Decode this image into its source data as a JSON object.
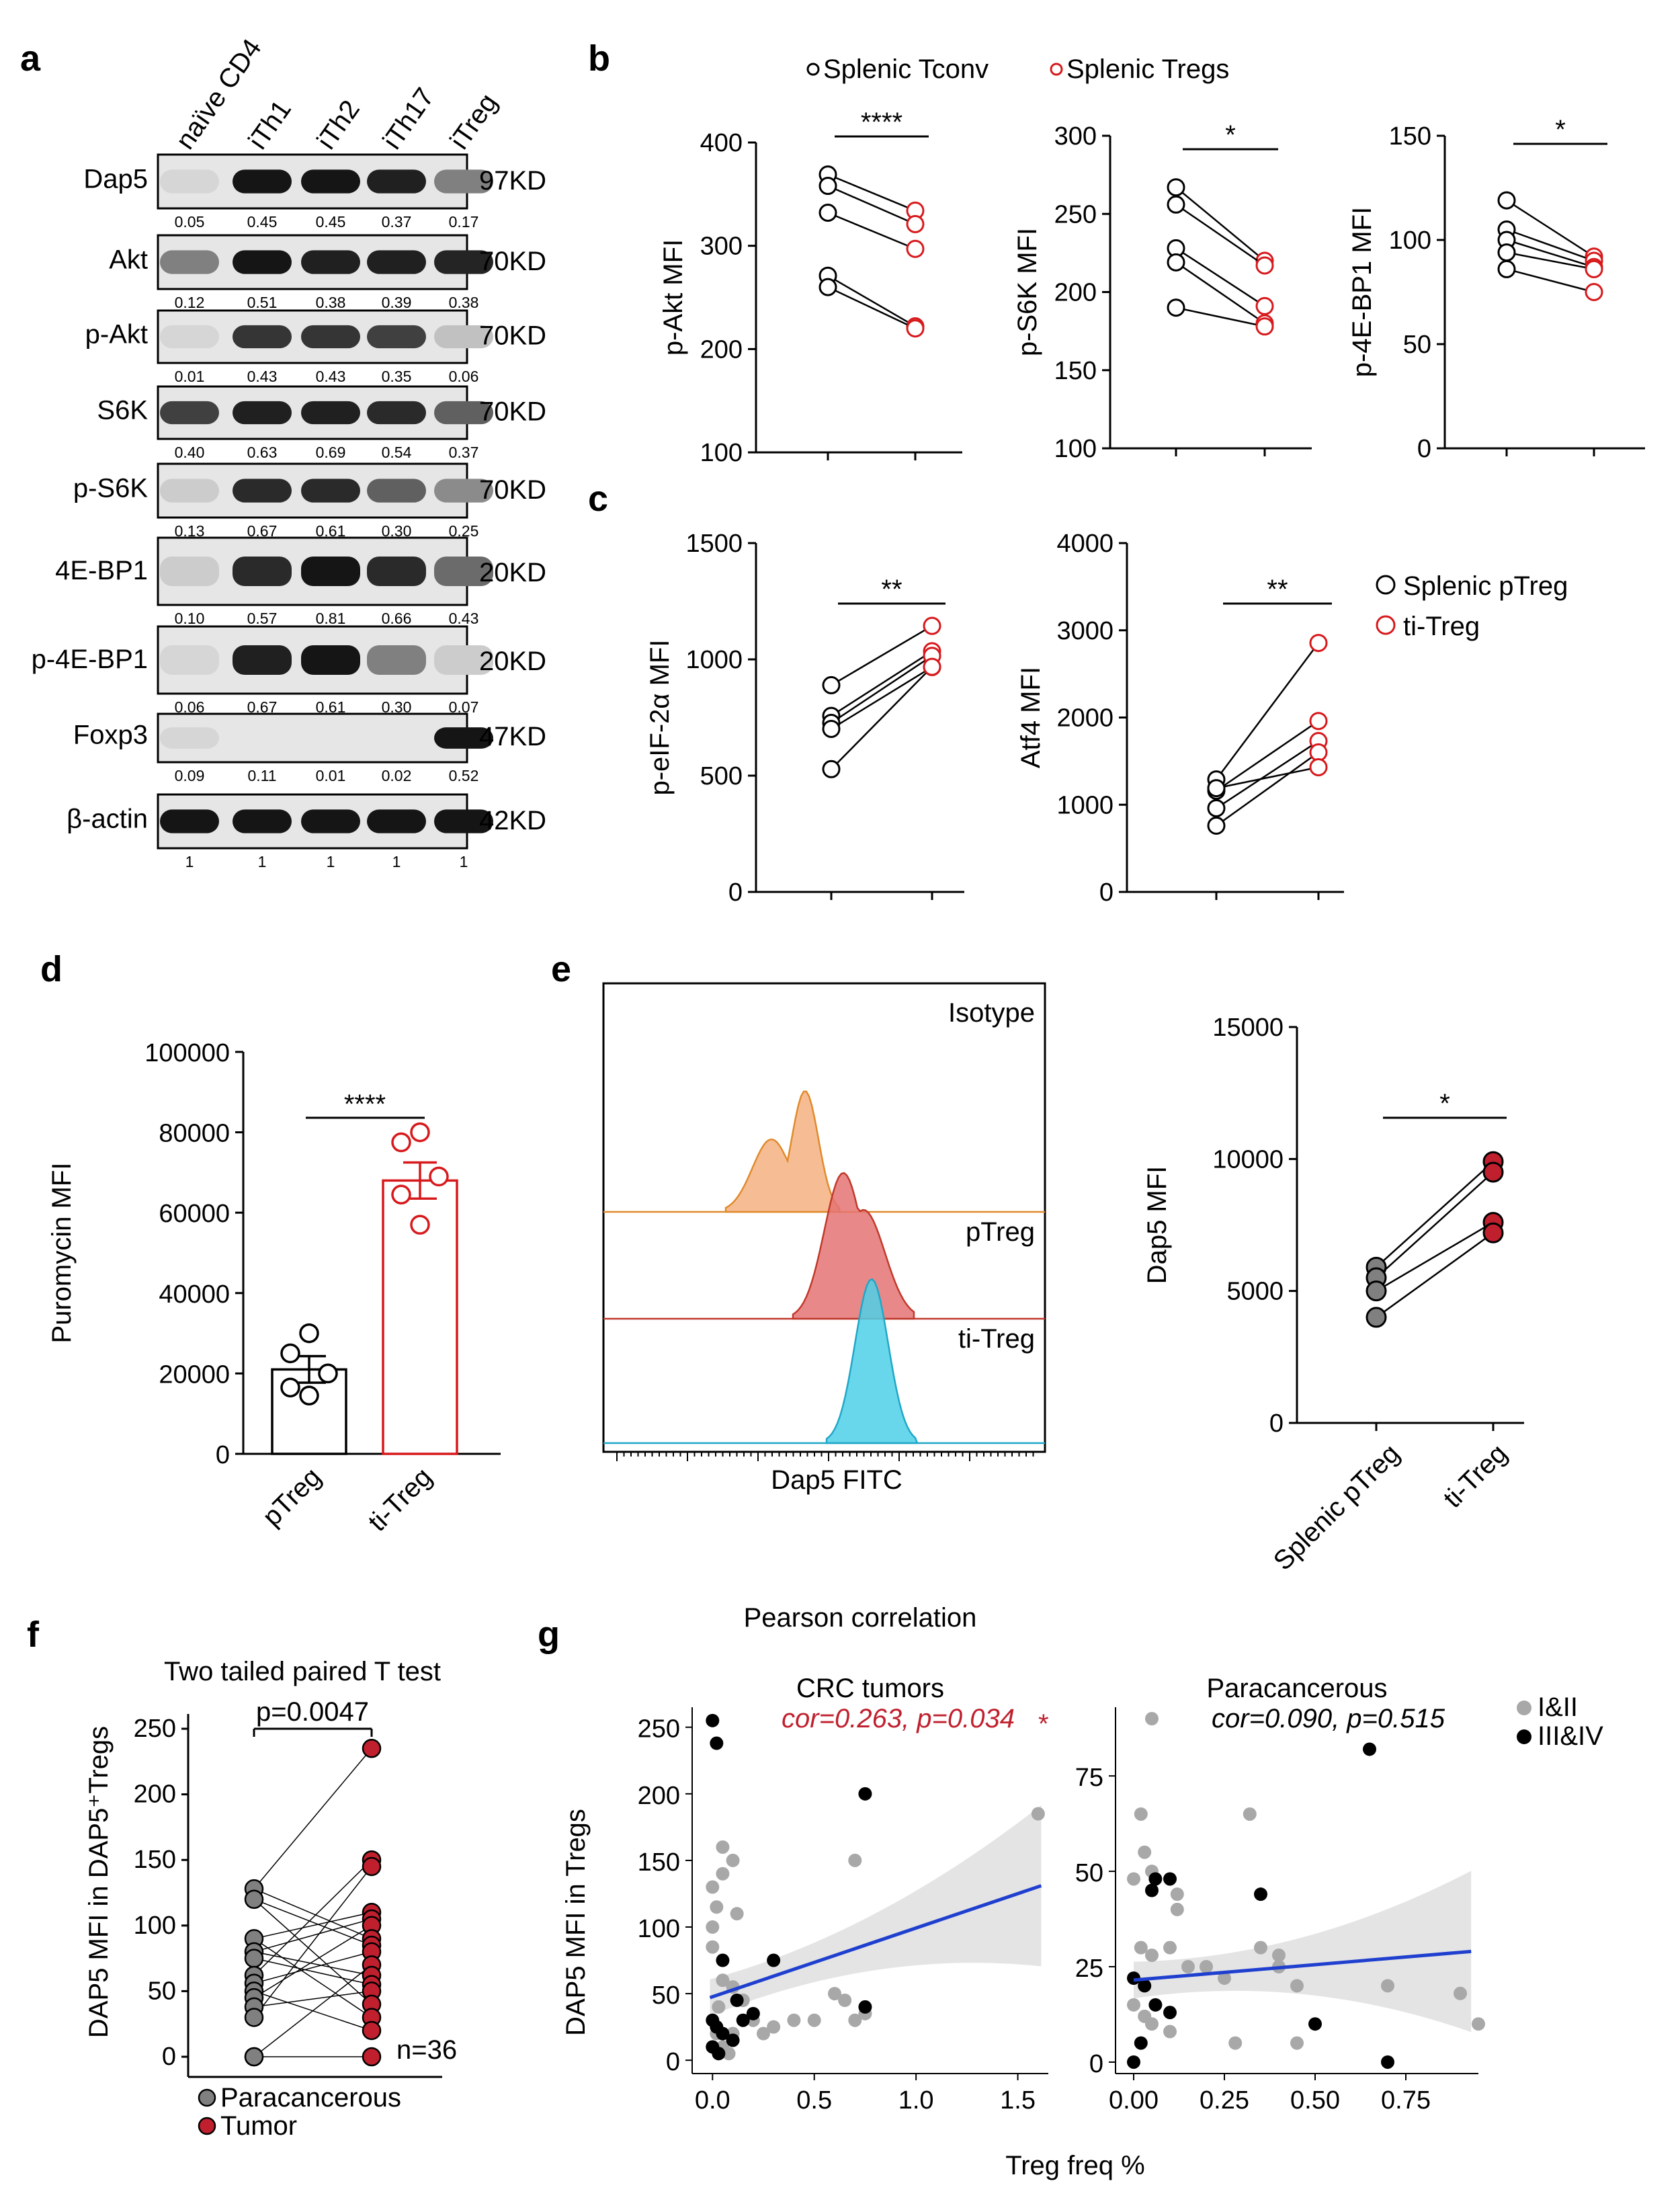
{
  "panel_labels": [
    "a",
    "b",
    "c",
    "d",
    "e",
    "f",
    "g"
  ],
  "colors": {
    "black": "#000000",
    "red": "#d7191c",
    "dark_red": "#c0202e",
    "grey": "#808080",
    "light_grey": "#a8a8a8",
    "blue": "#1f3fcf",
    "orange": "#f4b183",
    "pink": "#e57373",
    "cyan": "#4fd0e8"
  },
  "western_blot": {
    "lanes": [
      "naïve CD4",
      "iTh1",
      "iTh2",
      "iTh17",
      "iTreg"
    ],
    "rows": [
      {
        "protein": "Dap5",
        "kd": "97KD",
        "values": [
          "0.05",
          "0.45",
          "0.45",
          "0.37",
          "0.17"
        ],
        "intensity": [
          0.05,
          0.95,
          0.95,
          0.9,
          0.45
        ]
      },
      {
        "protein": "Akt",
        "kd": "70KD",
        "values": [
          "0.12",
          "0.51",
          "0.38",
          "0.39",
          "0.38"
        ],
        "intensity": [
          0.45,
          0.95,
          0.9,
          0.9,
          0.88
        ]
      },
      {
        "protein": "p-Akt",
        "kd": "70KD",
        "values": [
          "0.01",
          "0.43",
          "0.43",
          "0.35",
          "0.06"
        ],
        "intensity": [
          0.05,
          0.8,
          0.8,
          0.75,
          0.15
        ]
      },
      {
        "protein": "S6K",
        "kd": "70KD",
        "values": [
          "0.40",
          "0.63",
          "0.69",
          "0.54",
          "0.37"
        ],
        "intensity": [
          0.75,
          0.9,
          0.9,
          0.85,
          0.6
        ]
      },
      {
        "protein": "p-S6K",
        "kd": "70KD",
        "values": [
          "0.13",
          "0.67",
          "0.61",
          "0.30",
          "0.25"
        ],
        "intensity": [
          0.1,
          0.85,
          0.85,
          0.6,
          0.4
        ]
      },
      {
        "protein": "4E-BP1",
        "kd": "20KD",
        "values": [
          "0.10",
          "0.57",
          "0.81",
          "0.66",
          "0.43"
        ],
        "intensity": [
          0.1,
          0.85,
          0.95,
          0.85,
          0.55
        ]
      },
      {
        "protein": "p-4E-BP1",
        "kd": "20KD",
        "values": [
          "0.06",
          "0.67",
          "0.61",
          "0.30",
          "0.07"
        ],
        "intensity": [
          0.05,
          0.9,
          0.95,
          0.45,
          0.1
        ]
      },
      {
        "protein": "Foxp3",
        "kd": "47KD",
        "values": [
          "0.09",
          "0.11",
          "0.01",
          "0.02",
          "0.52"
        ],
        "intensity": [
          0.05,
          0.0,
          0.0,
          0.0,
          0.95
        ]
      },
      {
        "protein": "β-actin",
        "kd": "42KD",
        "values": [
          "1",
          "1",
          "1",
          "1",
          "1"
        ],
        "intensity": [
          0.95,
          0.95,
          0.95,
          0.95,
          0.95
        ]
      }
    ]
  },
  "panel_b": {
    "legend": [
      "Splenic Tconv",
      "Splenic Tregs"
    ],
    "charts": [
      {
        "ylabel": "p-Akt MFI",
        "ylim": [
          100,
          400
        ],
        "ticks": [
          100,
          200,
          300,
          400
        ],
        "sig": "****",
        "pairs": [
          [
            369,
            334
          ],
          [
            358,
            321
          ],
          [
            332,
            297
          ],
          [
            271,
            222
          ],
          [
            260,
            220
          ]
        ]
      },
      {
        "ylabel": "p-S6K MFI",
        "ylim": [
          100,
          300
        ],
        "ticks": [
          100,
          150,
          200,
          250,
          300
        ],
        "sig": "*",
        "pairs": [
          [
            267,
            220
          ],
          [
            256,
            217
          ],
          [
            228,
            191
          ],
          [
            219,
            180
          ],
          [
            190,
            178
          ]
        ]
      },
      {
        "ylabel": "p-4E-BP1 MFI",
        "ylim": [
          0,
          150
        ],
        "ticks": [
          0,
          50,
          100,
          150
        ],
        "sig": "*",
        "pairs": [
          [
            119,
            92
          ],
          [
            105,
            90
          ],
          [
            100,
            87
          ],
          [
            94,
            86
          ],
          [
            86,
            75
          ]
        ]
      }
    ]
  },
  "panel_c": {
    "legend": [
      "Splenic pTreg",
      "ti-Treg"
    ],
    "charts": [
      {
        "ylabel": "p-eIF-2α MFI",
        "ylim": [
          0,
          1500
        ],
        "ticks": [
          0,
          500,
          1000,
          1500
        ],
        "sig": "**",
        "pairs": [
          [
            889,
            1144
          ],
          [
            757,
            1035
          ],
          [
            727,
            1015
          ],
          [
            701,
            967
          ],
          [
            528,
            968
          ]
        ]
      },
      {
        "ylabel": "Atf4 MFI",
        "ylim": [
          0,
          4000
        ],
        "ticks": [
          0,
          1000,
          2000,
          3000,
          4000
        ],
        "sig": "**",
        "pairs": [
          [
            1290,
            2855
          ],
          [
            1160,
            1960
          ],
          [
            960,
            1730
          ],
          [
            760,
            1600
          ],
          [
            1190,
            1430
          ]
        ]
      }
    ]
  },
  "panel_d": {
    "chart_data": {
      "type": "bar",
      "ylabel": "Puromycin MFI",
      "ylim": [
        0,
        100000
      ],
      "ticks": [
        0,
        20000,
        40000,
        60000,
        80000,
        100000
      ],
      "categories": [
        "pTreg",
        "ti-Treg"
      ],
      "means": [
        21000,
        68000
      ],
      "sem": [
        3300,
        4500
      ],
      "points": [
        [
          30000,
          25000,
          20000,
          16500,
          14500
        ],
        [
          80000,
          77500,
          69000,
          64500,
          57000
        ]
      ],
      "sig": "****"
    }
  },
  "panel_e": {
    "histogram": {
      "xlabel": "Dap5 FITC",
      "tracks": [
        "Isotype",
        "pTreg",
        "ti-Treg"
      ]
    },
    "chart_data": {
      "type": "scatter",
      "ylabel": "Dap5 MFI",
      "ylim": [
        0,
        15000
      ],
      "ticks": [
        0,
        5000,
        10000,
        15000
      ],
      "categories": [
        "Splenic pTreg",
        "ti-Treg"
      ],
      "pairs": [
        [
          5900,
          9900
        ],
        [
          5500,
          9500
        ],
        [
          5000,
          7600
        ],
        [
          4000,
          7200
        ]
      ],
      "sig": "*"
    }
  },
  "panel_f": {
    "title": "Two tailed paired T test",
    "ylabel": "DAP5 MFI in DAP5⁺Tregs",
    "ylim": [
      0,
      250
    ],
    "ticks": [
      0,
      50,
      100,
      150,
      200,
      250
    ],
    "pvalue": "p=0.0047",
    "n": "n=36",
    "legend": [
      "Paracancerous",
      "Tumor"
    ],
    "chart_data": {
      "type": "scatter",
      "paracancerous": [
        128,
        120,
        90,
        80,
        75,
        62,
        56,
        50,
        45,
        38,
        30,
        0,
        0
      ],
      "tumor": [
        235,
        150,
        145,
        110,
        105,
        100,
        90,
        85,
        80,
        70,
        62,
        55,
        50,
        40,
        30,
        20,
        0
      ]
    }
  },
  "panel_g": {
    "subtitle": "Pearson correlation",
    "ylabel": "DAP5 MFI in Tregs",
    "xlabel": "Treg freq %",
    "legend": [
      "I&II",
      "III&IV"
    ],
    "charts": [
      {
        "title": "CRC tumors",
        "stat": "cor=0.263, p=0.034",
        "star": "*",
        "xlim": [
          -0.1,
          1.65
        ],
        "ylim": [
          -10,
          265
        ],
        "xticks": [
          "0.0",
          "0.5",
          "1.0",
          "1.5"
        ],
        "xtick_values": [
          0,
          0.5,
          1.0,
          1.5
        ],
        "yticks": [
          0,
          50,
          100,
          150,
          200,
          250
        ],
        "fit": [
          47,
          131
        ],
        "grey": [
          [
            0.0,
            130
          ],
          [
            0.02,
            115
          ],
          [
            0.0,
            100
          ],
          [
            0.05,
            160
          ],
          [
            0.05,
            140
          ],
          [
            0.1,
            150
          ],
          [
            0.12,
            110
          ],
          [
            0.0,
            85
          ],
          [
            0.05,
            60
          ],
          [
            0.1,
            55
          ],
          [
            0.15,
            45
          ],
          [
            0.2,
            30
          ],
          [
            0.25,
            20
          ],
          [
            0.3,
            25
          ],
          [
            0.4,
            30
          ],
          [
            0.5,
            30
          ],
          [
            0.6,
            50
          ],
          [
            0.65,
            45
          ],
          [
            0.7,
            30
          ],
          [
            0.75,
            35
          ],
          [
            0.7,
            150
          ],
          [
            1.6,
            185
          ],
          [
            0.02,
            20
          ],
          [
            0.05,
            10
          ],
          [
            0.08,
            5
          ],
          [
            0.1,
            20
          ],
          [
            0.03,
            40
          ]
        ],
        "black": [
          [
            0.0,
            255
          ],
          [
            0.02,
            238
          ],
          [
            0.75,
            200
          ],
          [
            0.05,
            75
          ],
          [
            0.3,
            75
          ],
          [
            0.75,
            40
          ],
          [
            0.0,
            30
          ],
          [
            0.02,
            25
          ],
          [
            0.05,
            20
          ],
          [
            0.1,
            15
          ],
          [
            0.12,
            45
          ],
          [
            0.15,
            30
          ],
          [
            0.0,
            10
          ],
          [
            0.03,
            5
          ],
          [
            0.2,
            35
          ]
        ]
      },
      {
        "title": "Paracancerous",
        "stat": "cor=0.090, p=0.515",
        "star": "",
        "xlim": [
          -0.05,
          0.95
        ],
        "ylim": [
          -3,
          93
        ],
        "xticks": [
          "0.00",
          "0.25",
          "0.50",
          "0.75"
        ],
        "xtick_values": [
          0,
          0.25,
          0.5,
          0.75
        ],
        "yticks": [
          0,
          25,
          50,
          75
        ],
        "fit": [
          21.5,
          29
        ],
        "grey": [
          [
            0.05,
            90
          ],
          [
            0.02,
            65
          ],
          [
            0.03,
            55
          ],
          [
            0.05,
            50
          ],
          [
            0.0,
            48
          ],
          [
            0.12,
            44
          ],
          [
            0.12,
            40
          ],
          [
            0.32,
            65
          ],
          [
            0.02,
            30
          ],
          [
            0.05,
            28
          ],
          [
            0.1,
            30
          ],
          [
            0.15,
            25
          ],
          [
            0.2,
            25
          ],
          [
            0.25,
            22
          ],
          [
            0.35,
            30
          ],
          [
            0.4,
            28
          ],
          [
            0.4,
            25
          ],
          [
            0.45,
            20
          ],
          [
            0.7,
            20
          ],
          [
            0.9,
            18
          ],
          [
            0.95,
            10
          ],
          [
            0.0,
            15
          ],
          [
            0.03,
            12
          ],
          [
            0.05,
            10
          ],
          [
            0.1,
            8
          ],
          [
            0.28,
            5
          ],
          [
            0.45,
            5
          ]
        ],
        "black": [
          [
            0.65,
            82
          ],
          [
            0.06,
            48
          ],
          [
            0.1,
            48
          ],
          [
            0.05,
            45
          ],
          [
            0.35,
            44
          ],
          [
            0.0,
            22
          ],
          [
            0.03,
            20
          ],
          [
            0.06,
            15
          ],
          [
            0.1,
            13
          ],
          [
            0.5,
            10
          ],
          [
            0.02,
            5
          ],
          [
            0.0,
            0
          ],
          [
            0.7,
            0
          ]
        ]
      }
    ]
  }
}
